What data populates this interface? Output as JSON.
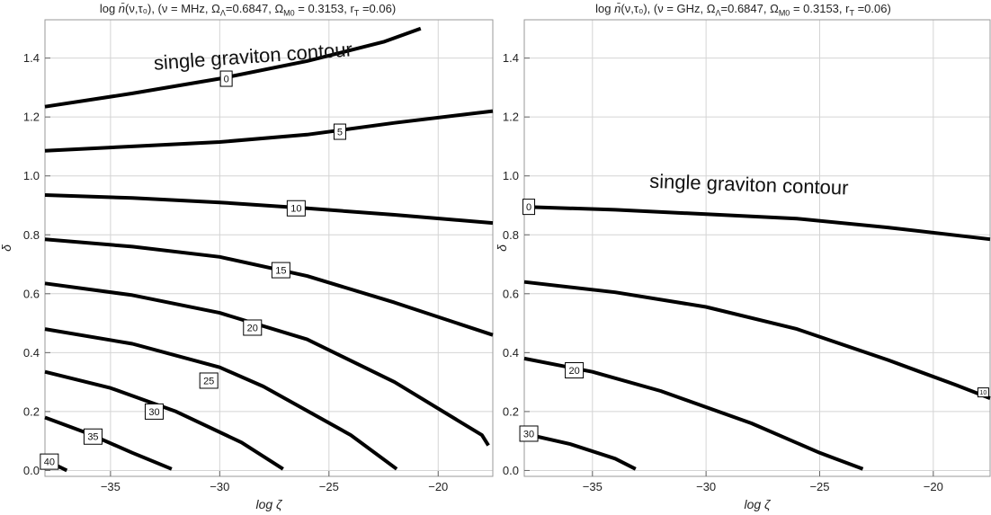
{
  "chart_data": [
    {
      "type": "contour",
      "title": "log n̄(ν,τ₀), (ν = MHz, ΩΛ=0.6847,  ΩM0 = 0.3153, rT =0.06)",
      "title_parts": {
        "prefix": "log ",
        "nbar": "n̄",
        "args": "(ν,τ₀), (ν = MHz, Ω",
        "sub_lambda": "Λ",
        "mid": "=0.6847,  Ω",
        "sub_m0": "M0",
        "tail": " = 0.3153, r",
        "sub_t": "T",
        "end": " =0.06)"
      },
      "xlabel": "log ζ",
      "ylabel": "δ",
      "xlim": [
        -38,
        -17.5
      ],
      "ylim": [
        -0.02,
        1.53
      ],
      "xticks": [
        -35,
        -30,
        -25,
        -20
      ],
      "xtick_labels": [
        "−35",
        "−30",
        "−25",
        "−20"
      ],
      "yticks": [
        0.0,
        0.2,
        0.4,
        0.6,
        0.8,
        1.0,
        1.2,
        1.4
      ],
      "ytick_labels": [
        "0.0",
        "0.2",
        "0.4",
        "0.6",
        "0.8",
        "1.0",
        "1.2",
        "1.4"
      ],
      "grid": true,
      "annotation": {
        "text": "single graviton contour",
        "x": -33,
        "y": 1.36
      },
      "contours": [
        {
          "level": "0",
          "label_at": [
            -29.7,
            1.33
          ],
          "points": [
            [
              -38,
              1.235
            ],
            [
              -34,
              1.28
            ],
            [
              -30,
              1.33
            ],
            [
              -26,
              1.39
            ],
            [
              -22.5,
              1.455
            ],
            [
              -20.8,
              1.5
            ]
          ]
        },
        {
          "level": "5",
          "label_at": [
            -24.5,
            1.15
          ],
          "points": [
            [
              -38,
              1.085
            ],
            [
              -34,
              1.1
            ],
            [
              -30,
              1.115
            ],
            [
              -26,
              1.14
            ],
            [
              -22,
              1.18
            ],
            [
              -17.5,
              1.22
            ]
          ]
        },
        {
          "level": "10",
          "label_at": [
            -26.5,
            0.89
          ],
          "points": [
            [
              -38,
              0.935
            ],
            [
              -34,
              0.925
            ],
            [
              -30,
              0.91
            ],
            [
              -26,
              0.89
            ],
            [
              -22,
              0.868
            ],
            [
              -17.5,
              0.84
            ]
          ]
        },
        {
          "level": "15",
          "label_at": [
            -27.2,
            0.68
          ],
          "points": [
            [
              -38,
              0.785
            ],
            [
              -34,
              0.76
            ],
            [
              -30,
              0.725
            ],
            [
              -26,
              0.66
            ],
            [
              -22,
              0.57
            ],
            [
              -17.5,
              0.46
            ]
          ]
        },
        {
          "level": "20",
          "label_at": [
            -28.5,
            0.485
          ],
          "points": [
            [
              -38,
              0.635
            ],
            [
              -34,
              0.595
            ],
            [
              -30,
              0.535
            ],
            [
              -26,
              0.445
            ],
            [
              -22,
              0.3
            ],
            [
              -18,
              0.12
            ],
            [
              -17.7,
              0.085
            ]
          ]
        },
        {
          "level": "25",
          "label_at": [
            -30.5,
            0.305
          ],
          "points": [
            [
              -38,
              0.48
            ],
            [
              -34,
              0.43
            ],
            [
              -30,
              0.35
            ],
            [
              -28,
              0.285
            ],
            [
              -24,
              0.12
            ],
            [
              -21.9,
              0.005
            ]
          ]
        },
        {
          "level": "30",
          "label_at": [
            -33.0,
            0.2
          ],
          "points": [
            [
              -38,
              0.335
            ],
            [
              -35,
              0.28
            ],
            [
              -32,
              0.2
            ],
            [
              -29,
              0.095
            ],
            [
              -27.1,
              0.005
            ]
          ]
        },
        {
          "level": "35",
          "label_at": [
            -35.8,
            0.115
          ],
          "points": [
            [
              -38,
              0.18
            ],
            [
              -36,
              0.125
            ],
            [
              -34,
              0.06
            ],
            [
              -32.2,
              0.005
            ]
          ]
        },
        {
          "level": "40",
          "label_at": [
            -37.8,
            0.03
          ],
          "points": [
            [
              -38,
              0.03
            ],
            [
              -37.5,
              0.018
            ],
            [
              -37.0,
              0.0
            ]
          ]
        }
      ]
    },
    {
      "type": "contour",
      "title": "log n̄(ν,τ₀), (ν = GHz, ΩΛ=0.6847,  ΩM0 = 0.3153, rT =0.06)",
      "title_parts": {
        "prefix": "log ",
        "nbar": "n̄",
        "args": "(ν,τ₀), (ν = GHz, Ω",
        "sub_lambda": "Λ",
        "mid": "=0.6847,  Ω",
        "sub_m0": "M0",
        "tail": " = 0.3153, r",
        "sub_t": "T",
        "end": " =0.06)"
      },
      "xlabel": "log ζ",
      "ylabel": "δ",
      "xlim": [
        -38,
        -17.5
      ],
      "ylim": [
        -0.02,
        1.53
      ],
      "xticks": [
        -35,
        -30,
        -25,
        -20
      ],
      "xtick_labels": [
        "−35",
        "−30",
        "−25",
        "−20"
      ],
      "yticks": [
        0.0,
        0.2,
        0.4,
        0.6,
        0.8,
        1.0,
        1.2,
        1.4
      ],
      "ytick_labels": [
        "0.0",
        "0.2",
        "0.4",
        "0.6",
        "0.8",
        "1.0",
        "1.2",
        "1.4"
      ],
      "grid": true,
      "annotation": {
        "text": "single graviton contour",
        "x": -32.5,
        "y": 0.96
      },
      "contours": [
        {
          "level": "0",
          "label_at": [
            -37.8,
            0.895
          ],
          "points": [
            [
              -38,
              0.895
            ],
            [
              -34,
              0.885
            ],
            [
              -30,
              0.87
            ],
            [
              -26,
              0.855
            ],
            [
              -22,
              0.825
            ],
            [
              -17.5,
              0.785
            ]
          ]
        },
        {
          "level": "10",
          "label_at": [
            -17.8,
            0.265
          ],
          "points": [
            [
              -38,
              0.64
            ],
            [
              -34,
              0.605
            ],
            [
              -30,
              0.555
            ],
            [
              -26,
              0.48
            ],
            [
              -22,
              0.375
            ],
            [
              -19,
              0.29
            ],
            [
              -17.5,
              0.245
            ]
          ]
        },
        {
          "level": "20",
          "label_at": [
            -35.8,
            0.34
          ],
          "points": [
            [
              -38,
              0.38
            ],
            [
              -35,
              0.335
            ],
            [
              -32,
              0.27
            ],
            [
              -28,
              0.16
            ],
            [
              -25,
              0.06
            ],
            [
              -23.1,
              0.005
            ]
          ]
        },
        {
          "level": "30",
          "label_at": [
            -37.8,
            0.125
          ],
          "points": [
            [
              -38,
              0.125
            ],
            [
              -36,
              0.09
            ],
            [
              -34,
              0.04
            ],
            [
              -33.1,
              0.005
            ]
          ]
        }
      ]
    }
  ]
}
